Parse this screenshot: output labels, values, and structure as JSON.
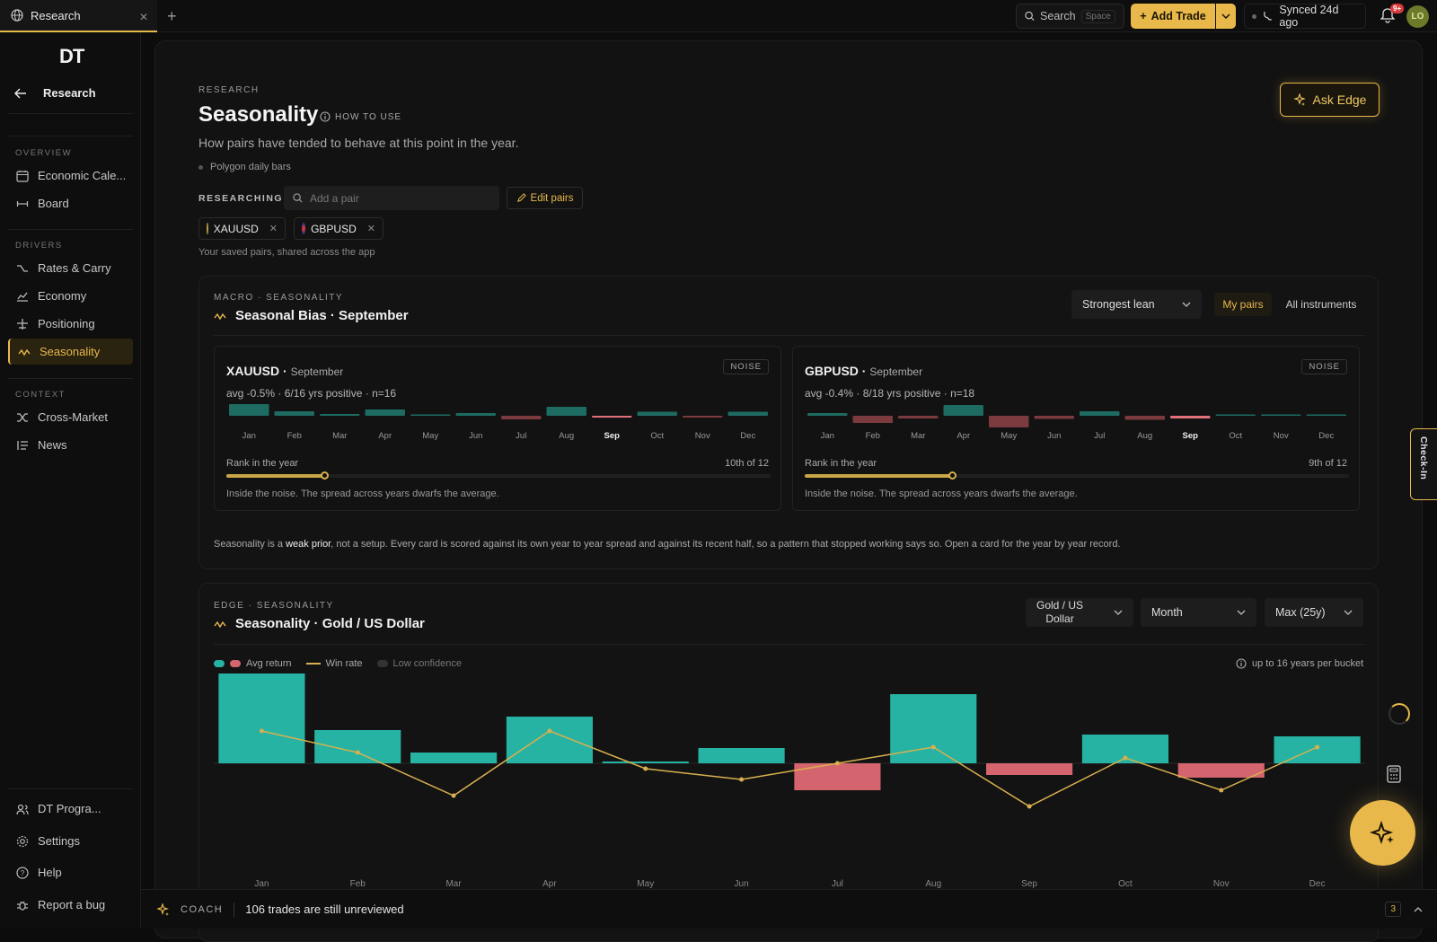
{
  "tab": {
    "label": "Research"
  },
  "topbar": {
    "search_label": "Search",
    "search_kbd": "Space",
    "add_trade": "Add Trade",
    "synced": "Synced 24d ago",
    "notif_badge": "9+",
    "avatar": "LO"
  },
  "sidebar": {
    "logo": "DT",
    "back_label": "Research",
    "sections": {
      "overview": "OVERVIEW",
      "drivers": "DRIVERS",
      "context": "CONTEXT"
    },
    "overview": [
      {
        "label": "Economic Cale...",
        "icon": "calendar-icon"
      },
      {
        "label": "Board",
        "icon": "board-icon"
      }
    ],
    "drivers": [
      {
        "label": "Rates & Carry",
        "icon": "rates-icon"
      },
      {
        "label": "Economy",
        "icon": "economy-icon"
      },
      {
        "label": "Positioning",
        "icon": "positioning-icon"
      },
      {
        "label": "Seasonality",
        "icon": "wave-icon",
        "active": true
      }
    ],
    "context": [
      {
        "label": "Cross-Market",
        "icon": "cross-icon"
      },
      {
        "label": "News",
        "icon": "news-icon"
      }
    ],
    "bottom": [
      {
        "label": "DT Progra...",
        "icon": "users-icon"
      },
      {
        "label": "Settings",
        "icon": "gear-icon"
      },
      {
        "label": "Help",
        "icon": "help-icon"
      },
      {
        "label": "Report a bug",
        "icon": "bug-icon"
      }
    ]
  },
  "header": {
    "eyebrow": "RESEARCH",
    "title": "Seasonality",
    "howto": "HOW TO USE",
    "subtitle": "How pairs have tended to behave at this point in the year.",
    "source": "Polygon daily bars",
    "researching": "RESEARCHING",
    "add_pair_placeholder": "Add a pair",
    "edit_pairs": "Edit pairs",
    "chips": [
      "XAUUSD",
      "GBPUSD"
    ],
    "saved_note": "Your saved pairs, shared across the app",
    "ask_edge": "Ask Edge"
  },
  "bias_panel": {
    "eyebrow": "MACRO · SEASONALITY",
    "title": "Seasonal Bias · September",
    "sort_select": "Strongest lean",
    "filter_my": "My pairs",
    "filter_all": "All instruments",
    "months": [
      "Jan",
      "Feb",
      "Mar",
      "Apr",
      "May",
      "Jun",
      "Jul",
      "Aug",
      "Sep",
      "Oct",
      "Nov",
      "Dec"
    ],
    "cards": [
      {
        "pair": "XAUUSD",
        "month": "September",
        "stats": "avg -0.5% · 6/16 yrs positive · n=16",
        "tag": "NOISE",
        "bars": [
          1.3,
          0.5,
          0.2,
          0.7,
          0.05,
          0.3,
          -0.4,
          1.0,
          -0.2,
          0.45,
          -0.2,
          0.45
        ],
        "rank_label": "Rank in the year",
        "rank_value": "10th of 12",
        "rank_fraction": 0.18,
        "note": "Inside the noise. The spread across years dwarfs the average."
      },
      {
        "pair": "GBPUSD",
        "month": "September",
        "stats": "avg -0.4% · 8/18 yrs positive · n=18",
        "tag": "NOISE",
        "bars": [
          0.3,
          -0.8,
          -0.3,
          1.2,
          -1.3,
          -0.35,
          0.5,
          -0.45,
          -0.3,
          0.15,
          0.15,
          0.15
        ],
        "rank_label": "Rank in the year",
        "rank_value": "9th of 12",
        "rank_fraction": 0.27,
        "note": "Inside the noise. The spread across years dwarfs the average."
      }
    ],
    "footnote_pre": "Seasonality is a ",
    "footnote_bold": "weak prior",
    "footnote_post": ", not a setup. Every card is scored against its own year to year spread and against its recent half, so a pattern that stopped working says so. Open a card for the year by year record."
  },
  "edge_panel": {
    "eyebrow": "EDGE · SEASONALITY",
    "title": "Seasonality · Gold / US Dollar",
    "instrument_select_1": "Gold / US",
    "instrument_select_2": "Dollar",
    "period_select": "Month",
    "range_select": "Max (25y)",
    "legend_avg": "Avg return",
    "legend_win": "Win rate",
    "legend_low": "Low confidence",
    "bucket_note": "up to 16 years per bucket"
  },
  "chart_data": {
    "type": "bar",
    "categories": [
      "Jan",
      "Feb",
      "Mar",
      "Apr",
      "May",
      "Jun",
      "Jul",
      "Aug",
      "Sep",
      "Oct",
      "Nov",
      "Dec"
    ],
    "series": [
      {
        "name": "Avg return",
        "values": [
          1.0,
          0.37,
          0.12,
          0.52,
          0.02,
          0.17,
          -0.3,
          0.77,
          -0.13,
          0.32,
          -0.16,
          0.3
        ]
      },
      {
        "name": "Win rate",
        "values": [
          56,
          52,
          44,
          56,
          49,
          47,
          50,
          53,
          42,
          51,
          45,
          53
        ]
      }
    ],
    "colors": {
      "positive": "#26b3a4",
      "negative": "#d4646d",
      "win_line": "#d8b04e"
    }
  },
  "coach": {
    "label": "COACH",
    "message": "106 trades are still unreviewed",
    "count": "3"
  },
  "checkin": "Check-In"
}
